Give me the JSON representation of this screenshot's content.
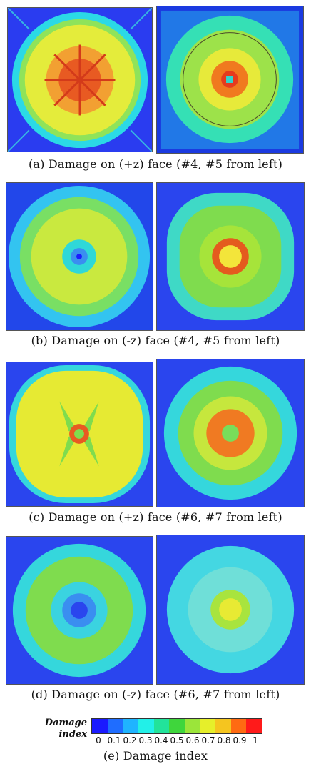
{
  "captions": {
    "a": "(a) Damage on (+z) face (#4, #5 from left)",
    "b": "(b) Damage on (-z) face (#4, #5 from left)",
    "c": "(c) Damage on (+z) face (#6, #7 from left)",
    "d": "(d) Damage on (-z) face (#6, #7 from left)",
    "e": "(e) Damage index"
  },
  "legend": {
    "title_line1": "Damage",
    "title_line2": "index",
    "ticks": [
      "0",
      "0.1",
      "0.2",
      "0.3",
      "0.4",
      "0.5",
      "0.6",
      "0.7",
      "0.8",
      "0.9",
      "1"
    ],
    "colors": [
      "#1a1aff",
      "#1f6dff",
      "#1fb4ff",
      "#22f0e8",
      "#22e39a",
      "#3fd63c",
      "#9be53a",
      "#e6ef2a",
      "#f5c51f",
      "#ff6a12",
      "#ff1a1a"
    ]
  }
}
